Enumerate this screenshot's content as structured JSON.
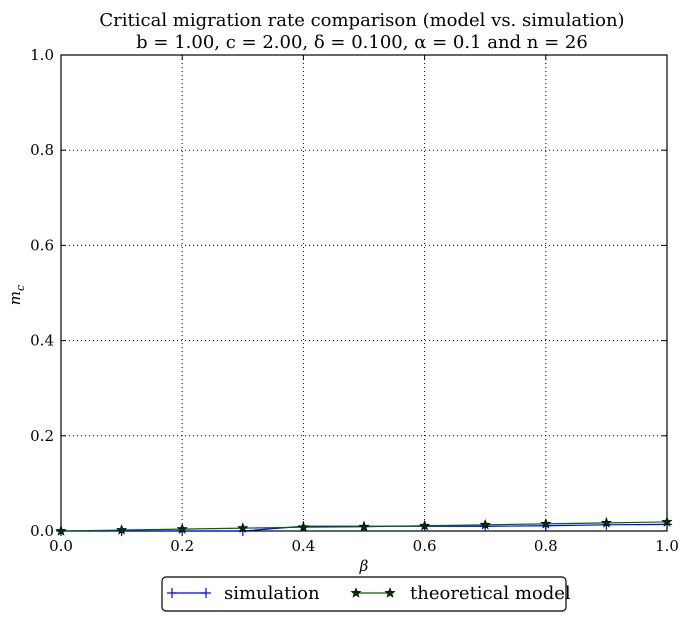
{
  "chart_data": {
    "type": "line",
    "title": "Critical migration rate comparison (model vs. simulation)",
    "subtitle": "b = 1.00, c = 2.00, δ = 0.100, α = 0.1 and n = 26",
    "xlabel": "β",
    "ylabel": "m_c",
    "xlim": [
      0.0,
      1.0
    ],
    "ylim": [
      0.0,
      1.0
    ],
    "x_ticks": [
      "0.0",
      "0.2",
      "0.4",
      "0.6",
      "0.8",
      "1.0"
    ],
    "y_ticks": [
      "0.0",
      "0.2",
      "0.4",
      "0.6",
      "0.8",
      "1.0"
    ],
    "grid": true,
    "legend_position": "bottom-center",
    "x": [
      0.0,
      0.1,
      0.2,
      0.3,
      0.4,
      0.5,
      0.6,
      0.7,
      0.8,
      0.9,
      1.0
    ],
    "series": [
      {
        "name": "simulation",
        "color": "#0000ff",
        "marker": "plus",
        "values": [
          0.0,
          0.0,
          0.0,
          0.0,
          0.01,
          0.01,
          0.01,
          0.01,
          0.011,
          0.013,
          0.014
        ]
      },
      {
        "name": "theoretical model",
        "color": "#006400",
        "marker": "star",
        "values": [
          0.0,
          0.002,
          0.004,
          0.006,
          0.008,
          0.009,
          0.011,
          0.013,
          0.015,
          0.017,
          0.019
        ]
      }
    ]
  }
}
